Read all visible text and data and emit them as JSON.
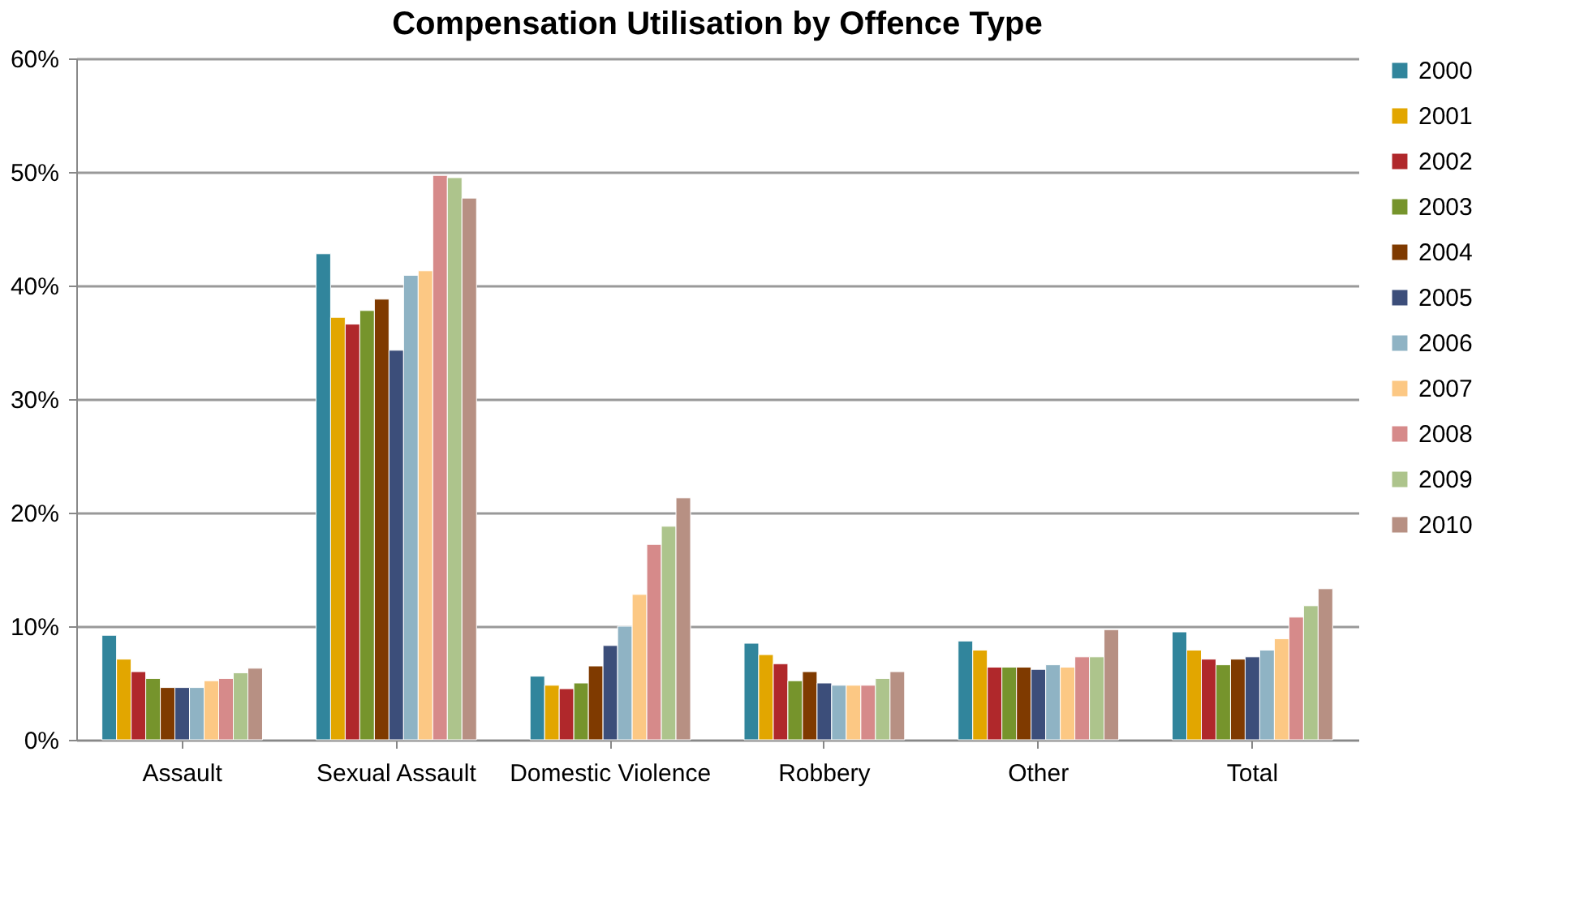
{
  "chart_data": {
    "type": "bar",
    "title": "Compensation Utilisation by Offence Type",
    "categories": [
      "Assault",
      "Sexual Assault",
      "Domestic Violence",
      "Robbery",
      "Other",
      "Total"
    ],
    "series": [
      {
        "name": "2000",
        "color": "#31859c",
        "values": [
          9.2,
          42.8,
          5.6,
          8.5,
          8.7,
          9.5
        ]
      },
      {
        "name": "2001",
        "color": "#e2a600",
        "values": [
          7.1,
          37.2,
          4.8,
          7.5,
          7.9,
          7.9
        ]
      },
      {
        "name": "2002",
        "color": "#b0282b",
        "values": [
          6.0,
          36.6,
          4.5,
          6.7,
          6.4,
          7.1
        ]
      },
      {
        "name": "2003",
        "color": "#76942c",
        "values": [
          5.4,
          37.8,
          5.0,
          5.2,
          6.4,
          6.6
        ]
      },
      {
        "name": "2004",
        "color": "#7f3a00",
        "values": [
          4.6,
          38.8,
          6.5,
          6.0,
          6.4,
          7.1
        ]
      },
      {
        "name": "2005",
        "color": "#3c4e7a",
        "values": [
          4.6,
          34.3,
          8.3,
          5.0,
          6.2,
          7.3
        ]
      },
      {
        "name": "2006",
        "color": "#8fb3c4",
        "values": [
          4.6,
          40.9,
          10.0,
          4.8,
          6.6,
          7.9
        ]
      },
      {
        "name": "2007",
        "color": "#fcc884",
        "values": [
          5.2,
          41.3,
          12.8,
          4.8,
          6.4,
          8.9
        ]
      },
      {
        "name": "2008",
        "color": "#d68a8a",
        "values": [
          5.4,
          49.7,
          17.2,
          4.8,
          7.3,
          10.8
        ]
      },
      {
        "name": "2009",
        "color": "#adc48c",
        "values": [
          5.9,
          49.5,
          18.8,
          5.4,
          7.3,
          11.8
        ]
      },
      {
        "name": "2010",
        "color": "#b79083",
        "values": [
          6.3,
          47.7,
          21.3,
          6.0,
          9.7,
          13.3
        ]
      }
    ],
    "ylim": [
      0,
      60
    ],
    "yticks": [
      {
        "value": 0,
        "label": "0%"
      },
      {
        "value": 10,
        "label": "10%"
      },
      {
        "value": 20,
        "label": "20%"
      },
      {
        "value": 30,
        "label": "30%"
      },
      {
        "value": 40,
        "label": "40%"
      },
      {
        "value": 50,
        "label": "50%"
      },
      {
        "value": 60,
        "label": "60%"
      }
    ],
    "grid": "y",
    "legend": "right"
  }
}
